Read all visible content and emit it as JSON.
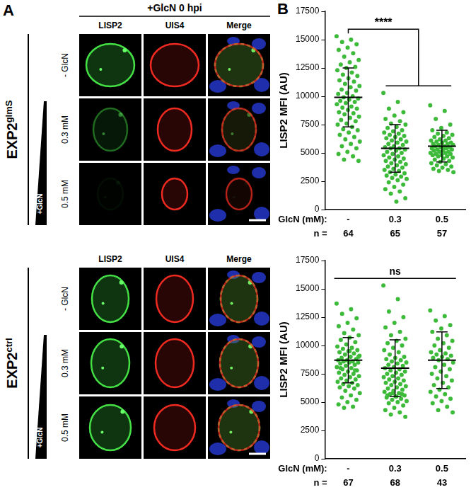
{
  "panel_a": {
    "label": "A",
    "header": "+GlcN 0 hpi",
    "columns": [
      "LISP2",
      "UIS4",
      "Merge"
    ],
    "gradient_label": "+GlcN",
    "groups": [
      {
        "name": "EXP2",
        "superscript": "glmS",
        "rows": [
          "- GlcN",
          "0.3 mM",
          "0.5 mM"
        ]
      },
      {
        "name": "EXP2",
        "superscript": "ctrl",
        "rows": [
          "- GlcN",
          "0.3 mM",
          "0.5 mM"
        ]
      }
    ]
  },
  "panel_b": {
    "label": "B"
  },
  "chart_data": [
    {
      "type": "scatter",
      "categories": [
        "-",
        "0.3",
        "0.5"
      ],
      "xlabel": "GlcN (mM):",
      "n_label": "n =",
      "n": [
        64,
        65,
        57
      ],
      "ylabel": "LISP2 MFI (AU)",
      "ylim": [
        0,
        17500
      ],
      "yticks": [
        0,
        2500,
        5000,
        7500,
        10000,
        12500,
        15000,
        17500
      ],
      "grid": false,
      "color": "#3dba3a",
      "values": [
        [
          15300,
          15000,
          14800,
          14600,
          14300,
          14100,
          13800,
          13500,
          13200,
          13000,
          12800,
          12600,
          12500,
          12300,
          12100,
          11900,
          11800,
          11600,
          11400,
          11300,
          11100,
          10900,
          10800,
          10600,
          10500,
          10300,
          10200,
          10000,
          9900,
          9800,
          9700,
          9600,
          9500,
          9400,
          9300,
          9100,
          9000,
          8900,
          8800,
          8600,
          8500,
          8400,
          8200,
          8100,
          7900,
          7800,
          7600,
          7500,
          7300,
          7100,
          7000,
          6800,
          6600,
          6400,
          6200,
          6000,
          5800,
          5600,
          5400,
          5100,
          4900,
          4700,
          4400,
          4300
        ],
        [
          10300,
          9500,
          8900,
          8600,
          8300,
          8000,
          7800,
          7600,
          7500,
          7300,
          7200,
          7000,
          6900,
          6800,
          6700,
          6600,
          6500,
          6400,
          6300,
          6200,
          6100,
          6000,
          5900,
          5800,
          5700,
          5600,
          5500,
          5400,
          5400,
          5300,
          5200,
          5100,
          5000,
          4900,
          4800,
          4700,
          4600,
          4500,
          4400,
          4300,
          4200,
          4100,
          4000,
          3900,
          3800,
          3700,
          3600,
          3500,
          3400,
          3300,
          3200,
          3100,
          3000,
          2900,
          2800,
          2700,
          2600,
          2400,
          2200,
          2000,
          1800,
          1600,
          1400,
          1000,
          700
        ],
        [
          9200,
          8700,
          8000,
          7500,
          7200,
          7000,
          6800,
          6700,
          6600,
          6500,
          6400,
          6300,
          6200,
          6100,
          6100,
          6000,
          5900,
          5900,
          5800,
          5800,
          5700,
          5700,
          5600,
          5600,
          5500,
          5500,
          5400,
          5400,
          5300,
          5300,
          5200,
          5200,
          5100,
          5100,
          5000,
          5000,
          4900,
          4900,
          4800,
          4800,
          4700,
          4700,
          4600,
          4500,
          4400,
          4300,
          4200,
          4100,
          4000,
          3900,
          3800,
          3700,
          3600,
          3500,
          3400,
          3300,
          5500
        ]
      ],
      "mean": [
        9900,
        5400,
        5600
      ],
      "sd": [
        2600,
        2100,
        1400
      ],
      "annotations": [
        {
          "text": "****",
          "groups": [
            [
              0
            ],
            [
              1,
              2
            ]
          ]
        }
      ]
    },
    {
      "type": "scatter",
      "categories": [
        "-",
        "0.3",
        "0.5"
      ],
      "xlabel": "GlcN (mM):",
      "n_label": "n =",
      "n": [
        67,
        68,
        43
      ],
      "ylabel": "LISP2 MFI (AU)",
      "ylim": [
        0,
        17500
      ],
      "yticks": [
        0,
        2500,
        5000,
        7500,
        10000,
        12500,
        15000,
        17500
      ],
      "grid": false,
      "color": "#3dba3a",
      "values": [
        [
          13700,
          13200,
          12800,
          12400,
          12000,
          11700,
          11400,
          11100,
          10900,
          10700,
          10500,
          10300,
          10100,
          9900,
          9800,
          9700,
          9600,
          9500,
          9400,
          9300,
          9200,
          9100,
          9000,
          8900,
          8800,
          8700,
          8700,
          8600,
          8600,
          8500,
          8500,
          8400,
          8300,
          8200,
          8100,
          8000,
          7900,
          7800,
          7700,
          7600,
          7500,
          7400,
          7300,
          7200,
          7100,
          7000,
          6900,
          6800,
          6700,
          6600,
          6500,
          6400,
          6300,
          6200,
          6000,
          5800,
          5600,
          5400,
          5200,
          5000,
          4800,
          4600,
          4500,
          9000,
          9500,
          8000,
          7800
        ],
        [
          15300,
          14100,
          13000,
          12500,
          12000,
          11600,
          11200,
          10900,
          10600,
          10400,
          10200,
          10000,
          9800,
          9600,
          9400,
          9200,
          9000,
          8900,
          8800,
          8700,
          8600,
          8500,
          8400,
          8300,
          8200,
          8100,
          8000,
          7900,
          7800,
          7700,
          7600,
          7500,
          7400,
          7300,
          7200,
          7100,
          7000,
          6900,
          6800,
          6700,
          6600,
          6500,
          6400,
          6300,
          6200,
          6100,
          6000,
          5900,
          5800,
          5700,
          5600,
          5500,
          5400,
          5300,
          5200,
          5100,
          5000,
          4900,
          4700,
          4500,
          4300,
          4100,
          3900,
          3700,
          5500,
          5600,
          5700,
          5800
        ],
        [
          13100,
          12600,
          12200,
          11800,
          11500,
          11200,
          10900,
          10600,
          10400,
          10200,
          10000,
          9800,
          9600,
          9400,
          9300,
          9200,
          9100,
          9000,
          8900,
          8800,
          8700,
          8500,
          8300,
          8100,
          7900,
          7700,
          7500,
          7300,
          7100,
          6900,
          6700,
          6500,
          6300,
          6100,
          5900,
          5700,
          5500,
          5300,
          5100,
          4900,
          4600,
          4300,
          4100
        ]
      ],
      "mean": [
        8700,
        8000,
        8700
      ],
      "sd": [
        2000,
        2500,
        2500
      ],
      "annotations": [
        {
          "text": "ns",
          "groups": [
            [
              0,
              1,
              2
            ]
          ]
        }
      ]
    }
  ]
}
